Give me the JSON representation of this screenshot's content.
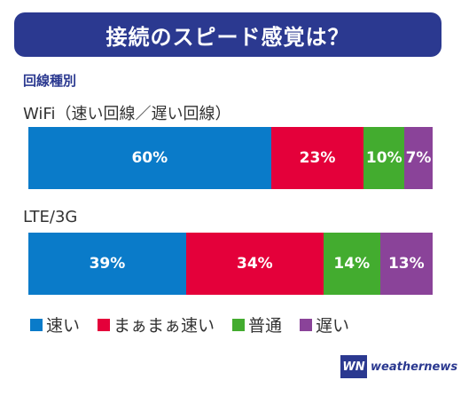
{
  "title": "接続のスピード感覚は？",
  "subtitle": "回線種別",
  "colors": {
    "fast": "#0A7BC9",
    "soso": "#E4003A",
    "normal": "#43AC2F",
    "slow": "#8A4399",
    "banner": "#2B3990"
  },
  "chart_data": {
    "type": "bar",
    "orientation": "horizontal-stacked-100",
    "categories": [
      "WiFi（速い回線／遅い回線）",
      "LTE/3G"
    ],
    "series": [
      {
        "name": "速い",
        "values": [
          60,
          39
        ]
      },
      {
        "name": "まぁまぁ速い",
        "values": [
          23,
          34
        ]
      },
      {
        "name": "普通",
        "values": [
          10,
          14
        ]
      },
      {
        "name": "遅い",
        "values": [
          7,
          13
        ]
      }
    ],
    "value_suffix": "%",
    "xlim": [
      0,
      100
    ],
    "legend_position": "bottom"
  },
  "legend": [
    {
      "label": "速い",
      "color": "#0A7BC9"
    },
    {
      "label": "まぁまぁ速い",
      "color": "#E4003A"
    },
    {
      "label": "普通",
      "color": "#43AC2F"
    },
    {
      "label": "遅い",
      "color": "#8A4399"
    }
  ],
  "logo": {
    "mark": "WN",
    "text": "weathernews"
  }
}
